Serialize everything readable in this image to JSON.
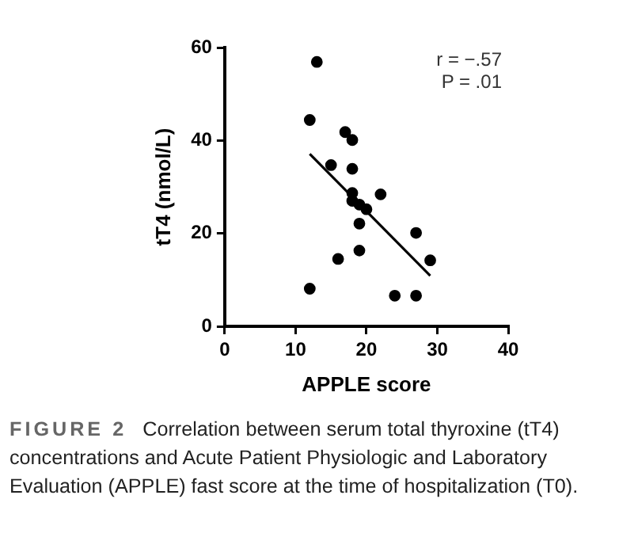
{
  "chart_data": {
    "type": "scatter",
    "xlabel": "APPLE score",
    "ylabel": "tT4 (nmol/L)",
    "x": [
      13,
      12,
      17,
      18,
      15,
      18,
      18,
      18,
      19,
      20,
      22,
      19,
      19,
      16,
      27,
      29,
      12,
      24,
      27
    ],
    "series": [
      {
        "marker": "circle",
        "color": "#000000",
        "values": [
          56.9,
          44.4,
          41.8,
          40.1,
          34.7,
          33.9,
          28.7,
          27.0,
          26.2,
          25.2,
          28.4,
          22.1,
          16.3,
          14.5,
          20.1,
          14.2,
          8.1,
          6.6,
          6.6
        ]
      },
      {
        "type": "line",
        "marker": "none",
        "color": "#000000",
        "x": [
          12,
          29
        ],
        "values": [
          37.1,
          10.9
        ]
      }
    ],
    "xlim": [
      0,
      40
    ],
    "xticks": [
      0,
      10,
      20,
      30,
      40
    ],
    "ylim": [
      0,
      60
    ],
    "yticks": [
      0,
      20,
      40,
      60
    ],
    "grid": false,
    "legend": false,
    "line_style": "solid",
    "annotations": [
      "r = −.57",
      "P = .01",
      "FIGURE 2",
      "Correlation between serum total thyroxine (tT4) concentrations and Acute Patient Physiologic and Laboratory Evaluation (APPLE) fast score at the time of hospitalization (T0)."
    ]
  }
}
